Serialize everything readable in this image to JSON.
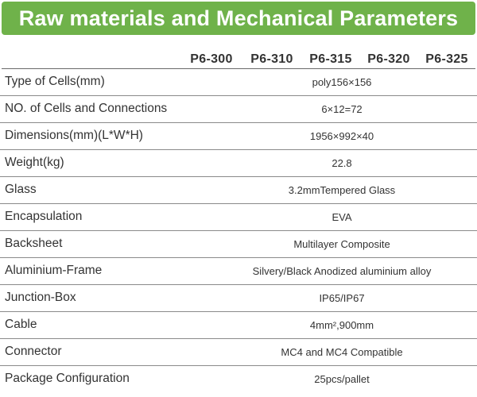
{
  "title": "Raw materials and Mechanical Parameters",
  "models": [
    "P6-300",
    "P6-310",
    "P6-315",
    "P6-320",
    "P6-325"
  ],
  "rows": [
    {
      "label": "Type of Cells(mm)",
      "value": "poly156×156"
    },
    {
      "label": "NO. of Cells and Connections",
      "value": "6×12=72"
    },
    {
      "label": "Dimensions(mm)(L*W*H)",
      "value": "1956×992×40"
    },
    {
      "label": "Weight(kg)",
      "value": "22.8"
    },
    {
      "label": "Glass",
      "value": "3.2mmTempered Glass"
    },
    {
      "label": "Encapsulation",
      "value": "EVA"
    },
    {
      "label": "Backsheet",
      "value": "Multilayer Composite"
    },
    {
      "label": "Aluminium-Frame",
      "value": "Silvery/Black Anodized aluminium alloy"
    },
    {
      "label": "Junction-Box",
      "value": "IP65/IP67"
    },
    {
      "label": "Cable",
      "value": "4mm²,900mm"
    },
    {
      "label": "Connector",
      "value": "MC4 and MC4 Compatible"
    },
    {
      "label": "Package Configuration",
      "value": "25pcs/pallet"
    }
  ],
  "colors": {
    "banner": "#6fb24a",
    "text": "#333333",
    "rule": "#8a8a8a"
  }
}
